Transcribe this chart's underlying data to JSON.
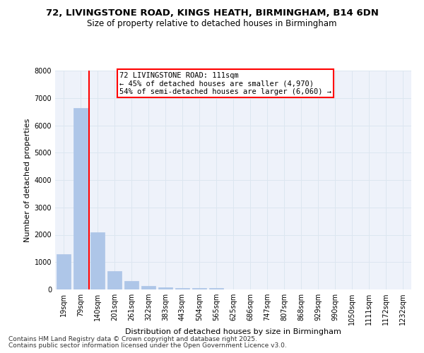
{
  "title_line1": "72, LIVINGSTONE ROAD, KINGS HEATH, BIRMINGHAM, B14 6DN",
  "title_line2": "Size of property relative to detached houses in Birmingham",
  "xlabel": "Distribution of detached houses by size in Birmingham",
  "ylabel": "Number of detached properties",
  "categories": [
    "19sqm",
    "79sqm",
    "140sqm",
    "201sqm",
    "261sqm",
    "322sqm",
    "383sqm",
    "443sqm",
    "504sqm",
    "565sqm",
    "625sqm",
    "686sqm",
    "747sqm",
    "807sqm",
    "868sqm",
    "929sqm",
    "990sqm",
    "1050sqm",
    "1111sqm",
    "1172sqm",
    "1232sqm"
  ],
  "values": [
    1300,
    6620,
    2080,
    670,
    310,
    140,
    85,
    50,
    45,
    40,
    10,
    5,
    3,
    2,
    1,
    1,
    1,
    0,
    0,
    0,
    0
  ],
  "bar_color": "#aec6e8",
  "bar_edge_color": "#aec6e8",
  "vline_color": "red",
  "vline_x": 1.5,
  "annotation_text": "72 LIVINGSTONE ROAD: 111sqm\n← 45% of detached houses are smaller (4,970)\n54% of semi-detached houses are larger (6,060) →",
  "annotation_box_color": "white",
  "annotation_box_edge_color": "red",
  "ylim": [
    0,
    8000
  ],
  "yticks": [
    0,
    1000,
    2000,
    3000,
    4000,
    5000,
    6000,
    7000,
    8000
  ],
  "grid_color": "#dce6f0",
  "bg_color": "#eef2fa",
  "footer_line1": "Contains HM Land Registry data © Crown copyright and database right 2025.",
  "footer_line2": "Contains public sector information licensed under the Open Government Licence v3.0.",
  "title_fontsize": 9.5,
  "subtitle_fontsize": 8.5,
  "axis_label_fontsize": 8,
  "tick_fontsize": 7,
  "annot_fontsize": 7.5,
  "footer_fontsize": 6.5
}
